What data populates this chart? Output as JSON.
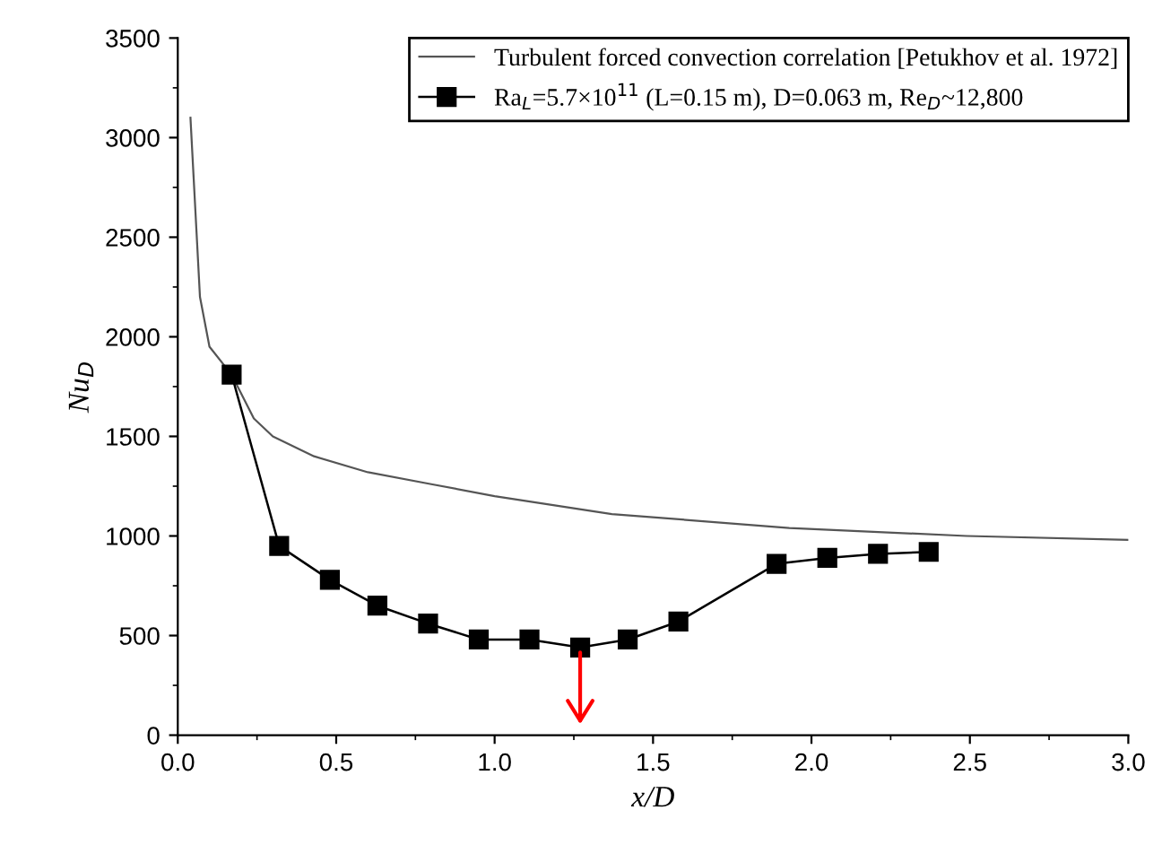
{
  "chart_data": {
    "type": "line",
    "xlabel": "x/D",
    "ylabel": "Nu$_{D}$",
    "xlim": [
      0,
      3
    ],
    "xticks": [
      "0.0",
      0.5,
      "1.0",
      1.5,
      "2.0",
      2.5,
      "3.0"
    ],
    "ylim": [
      0,
      3500
    ],
    "yticks": [
      0,
      500,
      1000,
      1500,
      2000,
      2500,
      3000,
      3500
    ],
    "grid": false,
    "legend": "top right",
    "series": [
      {
        "name": "Turbulent forced convection correlation [Petukhov et al. 1972]",
        "color": "#555555",
        "marker": "none",
        "x": [
          0.04,
          0.05,
          0.07,
          0.1,
          0.17,
          0.24,
          0.3,
          0.43,
          0.6,
          0.8,
          1.0,
          1.37,
          1.93,
          2.49,
          3.0
        ],
        "values": [
          3100,
          2800,
          2200,
          1950,
          1810,
          1590,
          1500,
          1400,
          1320,
          1260,
          1200,
          1110,
          1040,
          1000,
          980
        ]
      },
      {
        "name": "Ra$_{L}$=5.7×10$^{11}$ (L=0.15 m), D=0.063 m, Re$_{D}$~12,800",
        "color": "#000000",
        "marker": "square",
        "x": [
          0.17,
          0.32,
          0.48,
          0.63,
          0.79,
          0.95,
          1.11,
          1.27,
          1.42,
          1.58,
          1.89,
          2.05,
          2.21,
          2.37
        ],
        "values": [
          1810,
          950,
          780,
          650,
          560,
          480,
          480,
          440,
          480,
          570,
          860,
          890,
          910,
          920
        ]
      }
    ]
  }
}
